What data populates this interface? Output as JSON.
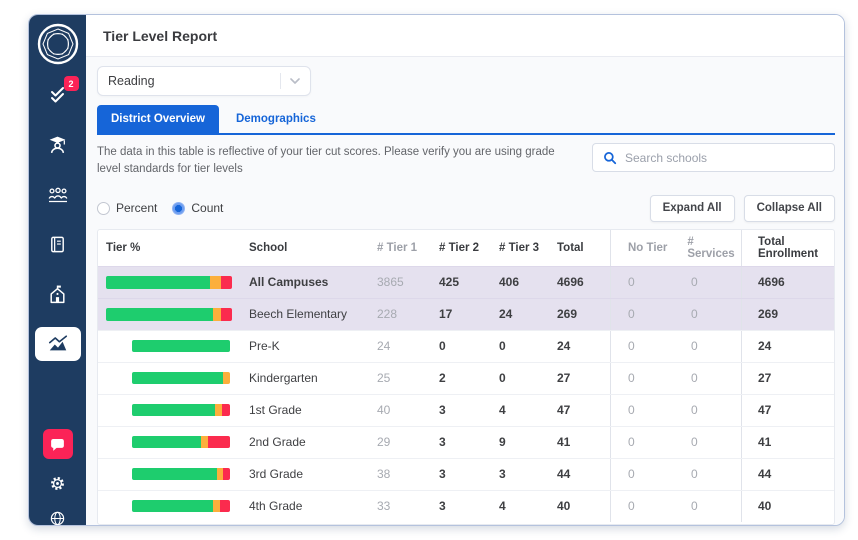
{
  "app": {
    "title": "Tier Level Report"
  },
  "sidebar": {
    "logo_icon": "branching-minds-logo",
    "nav_icons": [
      "tasks-checklist",
      "student-graduate",
      "people-group",
      "book",
      "school-building",
      "chart-report"
    ],
    "active_icon": "chart-report",
    "tasks_badge": "2",
    "footer_icons": [
      "chat-bubble",
      "gear",
      "globe"
    ]
  },
  "filter": {
    "selected_subject": "Reading"
  },
  "tabs": {
    "district": "District Overview",
    "demographics": "Demographics",
    "active": "District Overview"
  },
  "notice": "The data in this table is reflective of your tier cut scores. Please verify you are using grade level standards for tier levels",
  "search": {
    "placeholder": "Search schools",
    "icon": "search-icon"
  },
  "view_toggle": {
    "percent_label": "Percent",
    "count_label": "Count",
    "selected": "Count"
  },
  "actions": {
    "expand_all": "Expand All",
    "collapse_all": "Collapse All"
  },
  "table": {
    "columns": {
      "tier_pct": "Tier %",
      "school": "School",
      "tier1": "# Tier 1",
      "tier2": "# Tier 2",
      "tier3": "# Tier 3",
      "total": "Total",
      "no_tier": "No Tier",
      "services": "# Services",
      "enrollment": "Total Enrollment"
    },
    "rows": [
      {
        "school": "All Campuses",
        "tier1": 3865,
        "tier2": 425,
        "tier3": 406,
        "total": 4696,
        "no_tier": 0,
        "services": 0,
        "enrollment": 4696,
        "highlight": true,
        "bold": true,
        "indent": false
      },
      {
        "school": "Beech Elementary",
        "tier1": 228,
        "tier2": 17,
        "tier3": 24,
        "total": 269,
        "no_tier": 0,
        "services": 0,
        "enrollment": 269,
        "highlight": true,
        "bold": false,
        "indent": false
      },
      {
        "school": "Pre-K",
        "tier1": 24,
        "tier2": 0,
        "tier3": 0,
        "total": 24,
        "no_tier": 0,
        "services": 0,
        "enrollment": 24,
        "highlight": false,
        "bold": false,
        "indent": true
      },
      {
        "school": "Kindergarten",
        "tier1": 25,
        "tier2": 2,
        "tier3": 0,
        "total": 27,
        "no_tier": 0,
        "services": 0,
        "enrollment": 27,
        "highlight": false,
        "bold": false,
        "indent": true
      },
      {
        "school": "1st Grade",
        "tier1": 40,
        "tier2": 3,
        "tier3": 4,
        "total": 47,
        "no_tier": 0,
        "services": 0,
        "enrollment": 47,
        "highlight": false,
        "bold": false,
        "indent": true
      },
      {
        "school": "2nd Grade",
        "tier1": 29,
        "tier2": 3,
        "tier3": 9,
        "total": 41,
        "no_tier": 0,
        "services": 0,
        "enrollment": 41,
        "highlight": false,
        "bold": false,
        "indent": true
      },
      {
        "school": "3rd Grade",
        "tier1": 38,
        "tier2": 3,
        "tier3": 3,
        "total": 44,
        "no_tier": 0,
        "services": 0,
        "enrollment": 44,
        "highlight": false,
        "bold": false,
        "indent": true
      },
      {
        "school": "4th Grade",
        "tier1": 33,
        "tier2": 3,
        "tier3": 4,
        "total": 40,
        "no_tier": 0,
        "services": 0,
        "enrollment": 40,
        "highlight": false,
        "bold": false,
        "indent": true
      }
    ]
  },
  "colors": {
    "tier1_green": "#1ecd6e",
    "tier2_orange": "#fcaf3c",
    "tier3_red": "#fb2b4e",
    "accent_blue": "#1665d8",
    "sidebar_navy": "#1e3c61",
    "alert_red": "#fb2357",
    "highlight_row": "#e5e1ef"
  }
}
